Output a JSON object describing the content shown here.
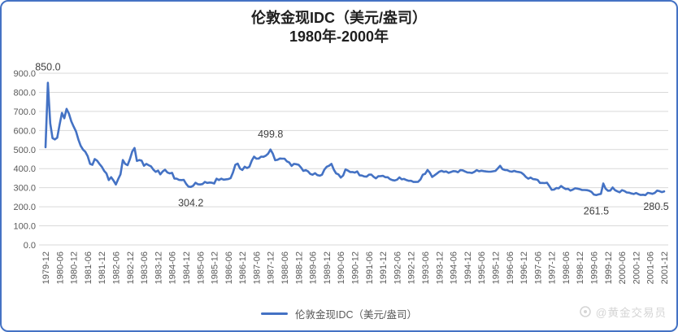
{
  "frame": {
    "border_color": "#4472C4",
    "background": "#ffffff"
  },
  "title": {
    "line1": "伦敦金现IDC（美元/盎司）",
    "line2": "1980年-2000年"
  },
  "legend": {
    "label": "伦敦金现IDC（美元/盎司）",
    "line_color": "#4472C4"
  },
  "watermark": {
    "text": "@黄金交易员"
  },
  "colors": {
    "line": "#4472C4",
    "gridline": "#D9D9D9",
    "axis_text": "#595959",
    "data_label_text": "#404040"
  },
  "chart_data": {
    "type": "line",
    "title": "伦敦金现IDC（美元/盎司） 1980年-2000年",
    "series_name": "伦敦金现IDC（美元/盎司）",
    "xlabel": "",
    "ylabel": "",
    "x_start": "1979-12",
    "x_end": "2001-12",
    "x_freq": "monthly",
    "x_tick_every": 6,
    "x_tick_labels": [
      "1979-12",
      "1980-06",
      "1980-12",
      "1981-06",
      "1981-12",
      "1982-06",
      "1982-12",
      "1983-06",
      "1983-12",
      "1984-06",
      "1984-12",
      "1985-06",
      "1985-12",
      "1986-06",
      "1986-12",
      "1987-06",
      "1987-12",
      "1988-06",
      "1988-12",
      "1989-06",
      "1989-12",
      "1990-06",
      "1990-12",
      "1991-06",
      "1991-12",
      "1992-06",
      "1992-12",
      "1993-06",
      "1993-12",
      "1994-06",
      "1994-12",
      "1995-06",
      "1995-12",
      "1996-06",
      "1996-12",
      "1997-06",
      "1997-12",
      "1998-06",
      "1998-12",
      "1999-06",
      "1999-12",
      "2000-06",
      "2000-12",
      "2001-06",
      "2001-12"
    ],
    "y_ticks": [
      "0.0",
      "100.0",
      "200.0",
      "300.0",
      "400.0",
      "500.0",
      "600.0",
      "700.0",
      "800.0",
      "900.0"
    ],
    "ylim": [
      0,
      900
    ],
    "grid": "horizontal",
    "legend_position": "bottom",
    "line_color": "#4472C4",
    "values": [
      512,
      850,
      637,
      560,
      553,
      562,
      630,
      692,
      664,
      713,
      688,
      648,
      620,
      595,
      553,
      520,
      500,
      488,
      465,
      425,
      420,
      450,
      442,
      425,
      410,
      388,
      375,
      340,
      355,
      338,
      317,
      345,
      370,
      445,
      425,
      418,
      450,
      490,
      508,
      440,
      445,
      442,
      415,
      425,
      418,
      412,
      395,
      383,
      390,
      370,
      385,
      394,
      380,
      375,
      378,
      348,
      347,
      341,
      340,
      341,
      320,
      306,
      304.2,
      310,
      326,
      318,
      317,
      319,
      330,
      325,
      327,
      326,
      322,
      347,
      340,
      347,
      342,
      344,
      345,
      350,
      380,
      420,
      426,
      400,
      393,
      410,
      403,
      410,
      442,
      463,
      452,
      453,
      463,
      462,
      468,
      478,
      499.8,
      478,
      444,
      446,
      453,
      452,
      452,
      438,
      432,
      414,
      425,
      423,
      420,
      406,
      388,
      392,
      386,
      372,
      368,
      376,
      366,
      363,
      368,
      395,
      410,
      415,
      425,
      395,
      375,
      370,
      353,
      364,
      396,
      390,
      382,
      382,
      379,
      385,
      365,
      364,
      359,
      358,
      368,
      369,
      357,
      349,
      360,
      361,
      362,
      355,
      355,
      345,
      340,
      338,
      342,
      354,
      344,
      346,
      340,
      336,
      336,
      330,
      330,
      331,
      343,
      368,
      373,
      393,
      379,
      356,
      365,
      374,
      384,
      388,
      383,
      385,
      378,
      382,
      387,
      386,
      381,
      392,
      391,
      385,
      380,
      379,
      377,
      383,
      392,
      386,
      389,
      387,
      385,
      384,
      384,
      386,
      388,
      401,
      415,
      397,
      393,
      392,
      386,
      384,
      388,
      384,
      382,
      379,
      370,
      356,
      347,
      353,
      345,
      344,
      341,
      325,
      325,
      324,
      326,
      308,
      289,
      290,
      298,
      297,
      309,
      300,
      293,
      294,
      285,
      290,
      297,
      295,
      292,
      288,
      288,
      287,
      284,
      278,
      264,
      261.5,
      265,
      268,
      322,
      295,
      284,
      285,
      301,
      287,
      281,
      276,
      287,
      283,
      275,
      274,
      270,
      267,
      272,
      266,
      262,
      263,
      261,
      273,
      271,
      268,
      273,
      285,
      282,
      277,
      280.5
    ],
    "annotations": [
      {
        "text": "850.0",
        "month": "1980-01",
        "index": 1,
        "value": 850.0,
        "placement": "above"
      },
      {
        "text": "304.2",
        "month": "1985-02",
        "index": 62,
        "value": 304.2,
        "placement": "below"
      },
      {
        "text": "499.8",
        "month": "1987-12",
        "index": 96,
        "value": 499.8,
        "placement": "above"
      },
      {
        "text": "261.5",
        "month": "1999-07",
        "index": 235,
        "value": 261.5,
        "placement": "below"
      },
      {
        "text": "280.5",
        "month": "2001-12",
        "index": 264,
        "value": 280.5,
        "placement": "below-left"
      }
    ]
  }
}
